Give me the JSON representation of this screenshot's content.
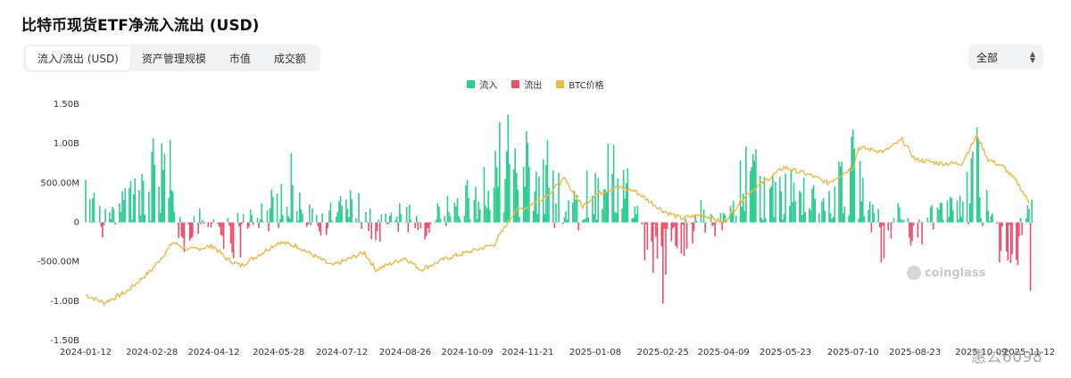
{
  "header": {
    "title": "比特币现货ETF净流入流出 (USD)"
  },
  "tabs": [
    {
      "label": "流入/流出 (USD)",
      "active": true
    },
    {
      "label": "资产管理规模",
      "active": false
    },
    {
      "label": "市值",
      "active": false
    },
    {
      "label": "成交额",
      "active": false
    }
  ],
  "range_select": {
    "value": "全部"
  },
  "watermark": {
    "text": "coinglass"
  },
  "credit": {
    "text": "惠公6098"
  },
  "colors": {
    "inflow": "#2ecc8f",
    "outflow": "#e8506a",
    "price": "#e9b94a",
    "axis_text": "#333333",
    "grid": "#eeeeee"
  },
  "chart_data": {
    "type": "bar",
    "legend": [
      {
        "name": "流入",
        "color": "#2ecc8f"
      },
      {
        "name": "流出",
        "color": "#e8506a"
      },
      {
        "name": "BTC价格",
        "color": "#e9b94a"
      }
    ],
    "legend_position": "top-center",
    "grid": false,
    "y_axis": {
      "ylim": [
        -1.5,
        1.5
      ],
      "unit": "B",
      "ticks": [
        1.5,
        1.0,
        0.5,
        0,
        -0.5,
        -1.0,
        -1.5
      ],
      "tick_labels": [
        "1.50B",
        "1.00B",
        "500.00M",
        "0",
        "-500.00M",
        "-1.00B",
        "-1.50B"
      ]
    },
    "x_axis": {
      "start": "2024-01-12",
      "end": "2025-11-12",
      "tick_labels": [
        "2024-01-12",
        "2024-02-28",
        "2024-04-12",
        "2024-05-28",
        "2024-07-12",
        "2024-08-26",
        "2024-10-09",
        "2024-11-21",
        "2025-01-08",
        "2025-02-25",
        "2025-04-09",
        "2025-05-23",
        "2025-07-10",
        "2025-08-23",
        "2025-10-09",
        "2025-11-12"
      ]
    },
    "flow_anchors_B": [
      [
        "2024-01-12",
        0.25
      ],
      [
        "2024-01-22",
        0.05
      ],
      [
        "2024-01-30",
        -0.1
      ],
      [
        "2024-02-12",
        0.4
      ],
      [
        "2024-02-28",
        0.6
      ],
      [
        "2024-03-12",
        0.65
      ],
      [
        "2024-03-20",
        -0.2
      ],
      [
        "2024-04-12",
        0.1
      ],
      [
        "2024-04-25",
        -0.25
      ],
      [
        "2024-05-05",
        -0.1
      ],
      [
        "2024-05-20",
        0.2
      ],
      [
        "2024-05-28",
        0.25
      ],
      [
        "2024-06-15",
        0.1
      ],
      [
        "2024-06-25",
        -0.12
      ],
      [
        "2024-07-12",
        0.25
      ],
      [
        "2024-07-22",
        0.2
      ],
      [
        "2024-08-05",
        -0.1
      ],
      [
        "2024-08-26",
        0.08
      ],
      [
        "2024-09-05",
        -0.12
      ],
      [
        "2024-09-25",
        0.15
      ],
      [
        "2024-10-09",
        0.2
      ],
      [
        "2024-10-20",
        0.45
      ],
      [
        "2024-11-01",
        0.7
      ],
      [
        "2024-11-10",
        0.85
      ],
      [
        "2024-11-21",
        0.55
      ],
      [
        "2024-12-05",
        0.55
      ],
      [
        "2024-12-20",
        0.2
      ],
      [
        "2025-01-08",
        0.3
      ],
      [
        "2025-01-20",
        0.55
      ],
      [
        "2025-02-05",
        0.15
      ],
      [
        "2025-02-10",
        -0.2
      ],
      [
        "2025-02-25",
        -0.5
      ],
      [
        "2025-03-10",
        -0.25
      ],
      [
        "2025-03-25",
        0.1
      ],
      [
        "2025-04-09",
        -0.05
      ],
      [
        "2025-04-25",
        0.6
      ],
      [
        "2025-05-05",
        0.4
      ],
      [
        "2025-05-23",
        0.4
      ],
      [
        "2025-06-10",
        0.3
      ],
      [
        "2025-06-20",
        0.15
      ],
      [
        "2025-07-10",
        0.65
      ],
      [
        "2025-07-20",
        0.4
      ],
      [
        "2025-08-01",
        -0.3
      ],
      [
        "2025-08-10",
        0.1
      ],
      [
        "2025-08-23",
        -0.15
      ],
      [
        "2025-09-10",
        0.15
      ],
      [
        "2025-09-25",
        0.3
      ],
      [
        "2025-10-06",
        0.8
      ],
      [
        "2025-10-14",
        0.1
      ],
      [
        "2025-10-22",
        -0.2
      ],
      [
        "2025-11-04",
        -0.4
      ],
      [
        "2025-11-12",
        0.1
      ]
    ],
    "notable_flows_B": [
      [
        "2024-03-12",
        1.05
      ],
      [
        "2024-06-06",
        0.88
      ],
      [
        "2024-11-07",
        1.37
      ],
      [
        "2024-11-21",
        1.01
      ],
      [
        "2025-01-17",
        1.0
      ],
      [
        "2025-02-25",
        -1.03
      ],
      [
        "2025-07-10",
        1.18
      ],
      [
        "2025-10-06",
        1.21
      ],
      [
        "2025-11-13",
        -0.87
      ]
    ],
    "btc_price_anchors_norm": [
      [
        "2024-01-12",
        -0.92
      ],
      [
        "2024-01-25",
        -1.02
      ],
      [
        "2024-02-10",
        -0.88
      ],
      [
        "2024-02-28",
        -0.6
      ],
      [
        "2024-03-10",
        -0.35
      ],
      [
        "2024-03-14",
        -0.25
      ],
      [
        "2024-03-25",
        -0.35
      ],
      [
        "2024-04-12",
        -0.3
      ],
      [
        "2024-04-20",
        -0.45
      ],
      [
        "2024-05-01",
        -0.55
      ],
      [
        "2024-05-15",
        -0.4
      ],
      [
        "2024-05-28",
        -0.25
      ],
      [
        "2024-06-10",
        -0.3
      ],
      [
        "2024-06-25",
        -0.45
      ],
      [
        "2024-07-05",
        -0.55
      ],
      [
        "2024-07-12",
        -0.5
      ],
      [
        "2024-07-28",
        -0.38
      ],
      [
        "2024-08-05",
        -0.6
      ],
      [
        "2024-08-26",
        -0.45
      ],
      [
        "2024-09-06",
        -0.6
      ],
      [
        "2024-09-25",
        -0.45
      ],
      [
        "2024-10-09",
        -0.38
      ],
      [
        "2024-10-28",
        -0.28
      ],
      [
        "2024-11-12",
        0.15
      ],
      [
        "2024-11-21",
        0.2
      ],
      [
        "2024-12-05",
        0.35
      ],
      [
        "2024-12-17",
        0.55
      ],
      [
        "2024-12-30",
        0.2
      ],
      [
        "2025-01-08",
        0.35
      ],
      [
        "2025-01-22",
        0.45
      ],
      [
        "2025-02-05",
        0.4
      ],
      [
        "2025-02-25",
        0.15
      ],
      [
        "2025-03-10",
        0.05
      ],
      [
        "2025-03-25",
        0.1
      ],
      [
        "2025-04-09",
        0.0
      ],
      [
        "2025-04-25",
        0.35
      ],
      [
        "2025-05-22",
        0.7
      ],
      [
        "2025-06-10",
        0.6
      ],
      [
        "2025-06-22",
        0.5
      ],
      [
        "2025-07-10",
        0.7
      ],
      [
        "2025-07-14",
        0.95
      ],
      [
        "2025-08-01",
        0.9
      ],
      [
        "2025-08-14",
        1.05
      ],
      [
        "2025-08-23",
        0.8
      ],
      [
        "2025-09-10",
        0.75
      ],
      [
        "2025-09-25",
        0.75
      ],
      [
        "2025-10-06",
        1.1
      ],
      [
        "2025-10-14",
        0.8
      ],
      [
        "2025-10-25",
        0.7
      ],
      [
        "2025-11-04",
        0.5
      ],
      [
        "2025-11-12",
        0.25
      ]
    ]
  }
}
